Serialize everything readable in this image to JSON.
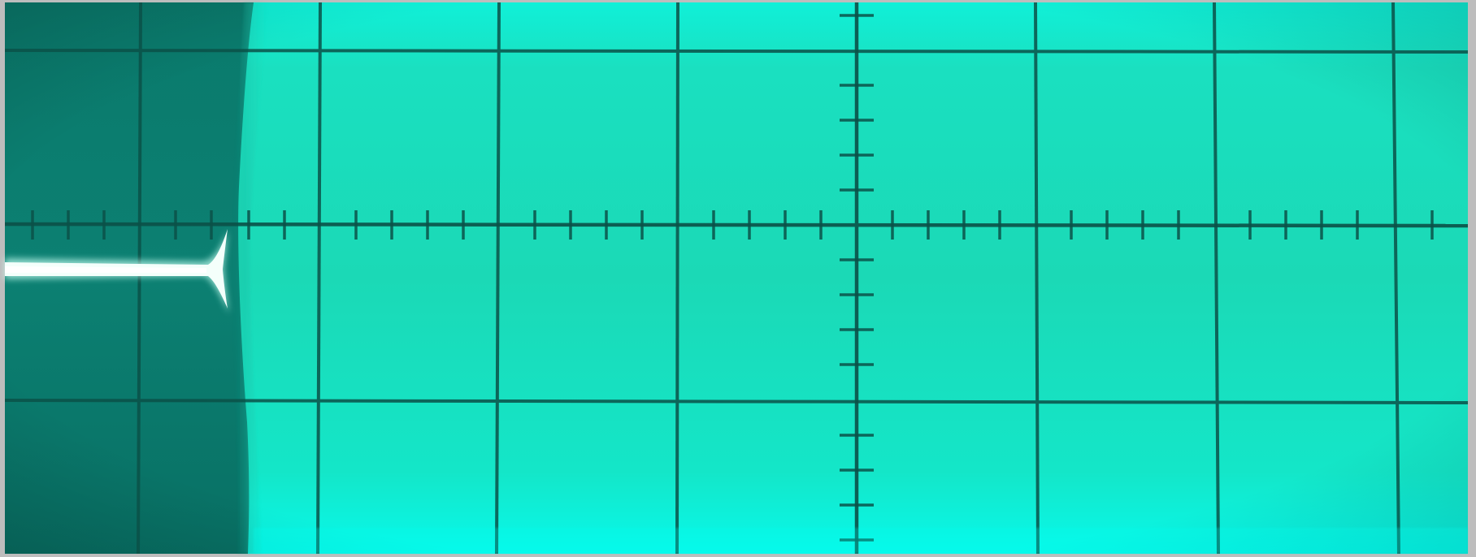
{
  "scene": {
    "frame_color": "#bdbdbd",
    "screen_bright": "#19e3c2",
    "screen_glow": "#0ff7e0",
    "screen_dark": "#087566",
    "graticule_color": "#0b4f45",
    "trace_color": "#f4fffb",
    "subject": "oscilloscope-screen-photo"
  }
}
